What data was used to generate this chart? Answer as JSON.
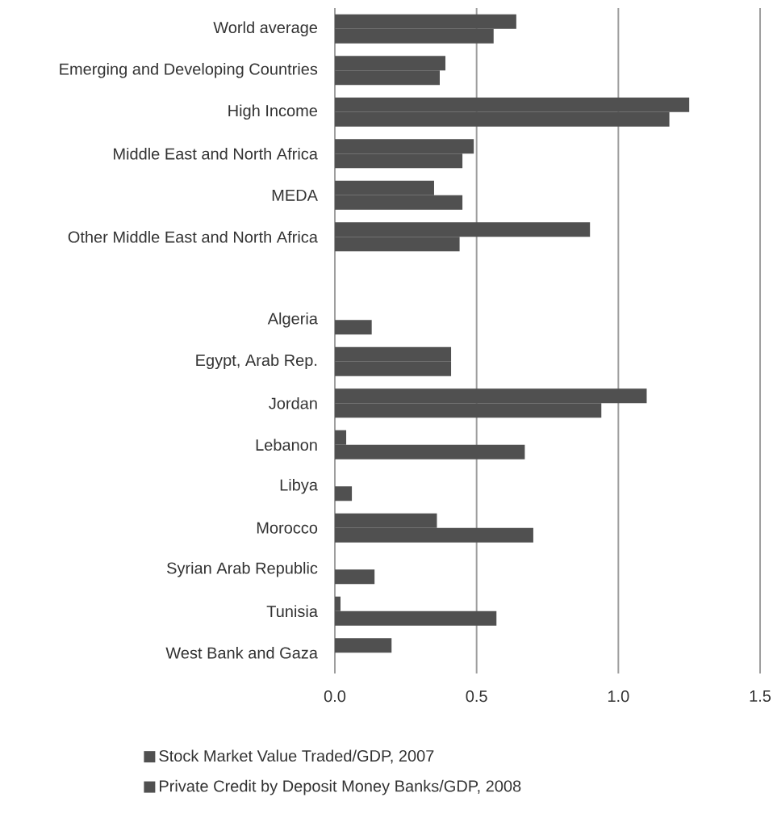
{
  "chart_data": {
    "type": "bar",
    "orientation": "horizontal",
    "categories": [
      "World average",
      "Emerging and Developing Countries",
      "High Income",
      "Middle East and North Africa",
      "MEDA",
      "Other Middle East and North Africa",
      null,
      "Algeria",
      "Egypt, Arab Rep.",
      "Jordan",
      "Lebanon",
      "Libya",
      "Morocco",
      "Syrian Arab Republic",
      "Tunisia",
      "West Bank and Gaza"
    ],
    "series": [
      {
        "name": "Stock Market Value Traded/GDP, 2007",
        "color": "#505050",
        "values": [
          0.64,
          0.39,
          1.25,
          0.49,
          0.35,
          0.9,
          null,
          null,
          0.41,
          1.1,
          0.04,
          null,
          0.36,
          null,
          0.02,
          0.2
        ]
      },
      {
        "name": "Private Credit by Deposit Money Banks/GDP, 2008",
        "color": "#505050",
        "values": [
          0.56,
          0.37,
          1.18,
          0.45,
          0.45,
          0.44,
          null,
          0.13,
          0.41,
          0.94,
          0.67,
          0.06,
          0.7,
          0.14,
          0.57,
          null
        ]
      }
    ],
    "xlim": [
      0,
      1.5
    ],
    "xticks": [
      {
        "value": 0,
        "label": "0.0"
      },
      0.5,
      {
        "value": 1,
        "label": "1.0"
      },
      1.5
    ],
    "grid": "x",
    "legend": "bottom"
  }
}
